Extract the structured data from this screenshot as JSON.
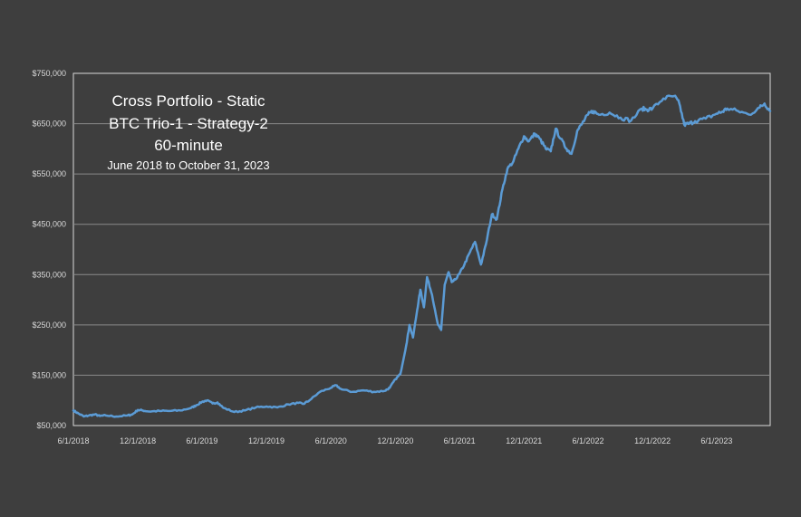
{
  "chart_data": {
    "type": "line",
    "title_lines": [
      "Cross Portfolio - Static",
      "BTC Trio-1 - Strategy-2",
      "60-minute",
      "June 2018 to October 31, 2023"
    ],
    "xlabel": "",
    "ylabel": "",
    "x_ticks": [
      "6/1/2018",
      "12/1/2018",
      "6/1/2019",
      "12/1/2019",
      "6/1/2020",
      "12/1/2020",
      "6/1/2021",
      "12/1/2021",
      "6/1/2022",
      "12/1/2022",
      "6/1/2023"
    ],
    "x_range": [
      "6/1/2018",
      "10/31/2023"
    ],
    "y_ticks": [
      "$50,000",
      "$150,000",
      "$250,000",
      "$350,000",
      "$450,000",
      "$550,000",
      "$650,000",
      "$750,000"
    ],
    "ylim": [
      50000,
      750000
    ],
    "grid": true,
    "legend": "none",
    "line_color": "#5b9bd5",
    "series": [
      {
        "x": [
          "2018-06-01",
          "2018-06-15",
          "2018-07-01",
          "2018-07-15",
          "2018-08-01",
          "2018-08-15",
          "2018-09-01",
          "2018-10-01",
          "2018-11-01",
          "2018-11-15",
          "2018-12-01",
          "2018-12-15",
          "2019-01-01",
          "2019-02-01",
          "2019-03-01",
          "2019-04-01",
          "2019-05-01",
          "2019-05-15",
          "2019-06-01",
          "2019-06-15",
          "2019-07-01",
          "2019-07-15",
          "2019-08-01",
          "2019-09-01",
          "2019-10-01",
          "2019-11-01",
          "2019-12-01",
          "2020-01-01",
          "2020-02-01",
          "2020-03-01",
          "2020-03-15",
          "2020-04-01",
          "2020-05-01",
          "2020-06-01",
          "2020-06-15",
          "2020-07-01",
          "2020-08-01",
          "2020-09-01",
          "2020-10-01",
          "2020-11-01",
          "2020-11-15",
          "2020-12-01",
          "2020-12-15",
          "2021-01-01",
          "2021-01-10",
          "2021-01-20",
          "2021-02-01",
          "2021-02-10",
          "2021-02-20",
          "2021-03-01",
          "2021-03-15",
          "2021-04-01",
          "2021-04-10",
          "2021-04-20",
          "2021-05-01",
          "2021-05-10",
          "2021-05-20",
          "2021-06-01",
          "2021-06-15",
          "2021-07-01",
          "2021-07-15",
          "2021-08-01",
          "2021-08-15",
          "2021-09-01",
          "2021-09-15",
          "2021-10-01",
          "2021-10-15",
          "2021-11-01",
          "2021-11-15",
          "2021-12-01",
          "2021-12-15",
          "2022-01-01",
          "2022-01-15",
          "2022-02-01",
          "2022-02-15",
          "2022-03-01",
          "2022-03-15",
          "2022-04-01",
          "2022-04-15",
          "2022-05-01",
          "2022-05-15",
          "2022-06-01",
          "2022-06-15",
          "2022-07-01",
          "2022-08-01",
          "2022-09-01",
          "2022-10-01",
          "2022-11-01",
          "2022-11-15",
          "2022-12-01",
          "2023-01-01",
          "2023-02-01",
          "2023-02-15",
          "2023-03-01",
          "2023-03-15",
          "2023-04-01",
          "2023-05-01",
          "2023-06-01",
          "2023-06-15",
          "2023-07-01",
          "2023-08-01",
          "2023-09-01",
          "2023-10-01",
          "2023-10-15",
          "2023-10-31"
        ],
        "y": [
          80000,
          74000,
          68000,
          70000,
          72000,
          69000,
          70000,
          68000,
          70000,
          72000,
          81000,
          80000,
          78000,
          79000,
          79000,
          80000,
          85000,
          90000,
          97000,
          100000,
          94000,
          96000,
          85000,
          77000,
          80000,
          86000,
          88000,
          86000,
          92000,
          95000,
          93000,
          100000,
          117000,
          125000,
          130000,
          122000,
          117000,
          120000,
          117000,
          119000,
          125000,
          142000,
          152000,
          210000,
          250000,
          225000,
          280000,
          320000,
          285000,
          345000,
          310000,
          250000,
          240000,
          330000,
          355000,
          335000,
          340000,
          352000,
          370000,
          395000,
          415000,
          370000,
          410000,
          470000,
          460000,
          520000,
          560000,
          575000,
          600000,
          625000,
          615000,
          630000,
          620000,
          600000,
          595000,
          640000,
          620000,
          600000,
          590000,
          635000,
          650000,
          668000,
          675000,
          668000,
          672000,
          662000,
          656000,
          680000,
          678000,
          680000,
          700000,
          705000,
          690000,
          648000,
          650000,
          655000,
          660000,
          670000,
          673000,
          680000,
          675000,
          668000,
          682000,
          690000,
          675000
        ]
      }
    ]
  }
}
